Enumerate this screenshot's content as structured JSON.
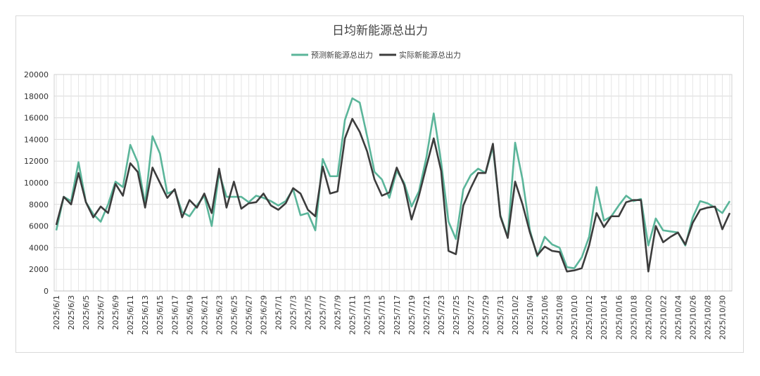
{
  "chart_data": {
    "type": "line",
    "title": "日均新能源总出力",
    "xlabel": "",
    "ylabel": "",
    "ylim": [
      0,
      20000
    ],
    "yticks": [
      0,
      2000,
      4000,
      6000,
      8000,
      10000,
      12000,
      14000,
      16000,
      18000,
      20000
    ],
    "grid": true,
    "legend_position": "top-center",
    "categories": [
      "2025/6/1",
      "2025/6/2",
      "2025/6/3",
      "2025/6/4",
      "2025/6/5",
      "2025/6/6",
      "2025/6/7",
      "2025/6/8",
      "2025/6/9",
      "2025/6/10",
      "2025/6/11",
      "2025/6/12",
      "2025/6/13",
      "2025/6/14",
      "2025/6/15",
      "2025/6/16",
      "2025/6/17",
      "2025/6/18",
      "2025/6/19",
      "2025/6/20",
      "2025/6/21",
      "2025/6/22",
      "2025/6/23",
      "2025/6/24",
      "2025/6/25",
      "2025/6/26",
      "2025/6/27",
      "2025/6/28",
      "2025/6/29",
      "2025/6/30",
      "2025/7/1",
      "2025/7/2",
      "2025/7/3",
      "2025/7/4",
      "2025/7/5",
      "2025/7/6",
      "2025/7/7",
      "2025/7/8",
      "2025/7/9",
      "2025/7/10",
      "2025/7/11",
      "2025/7/12",
      "2025/7/13",
      "2025/7/14",
      "2025/7/15",
      "2025/7/16",
      "2025/7/17",
      "2025/7/18",
      "2025/7/19",
      "2025/7/20",
      "2025/7/21",
      "2025/7/22",
      "2025/7/23",
      "2025/7/24",
      "2025/7/25",
      "2025/7/26",
      "2025/7/27",
      "2025/7/28",
      "2025/7/29",
      "2025/7/30",
      "2025/7/31",
      "2025/10/1",
      "2025/10/2",
      "2025/10/3",
      "2025/10/4",
      "2025/10/5",
      "2025/10/6",
      "2025/10/7",
      "2025/10/8",
      "2025/10/9",
      "2025/10/10",
      "2025/10/11",
      "2025/10/12",
      "2025/10/13",
      "2025/10/14",
      "2025/10/15",
      "2025/10/16",
      "2025/10/17",
      "2025/10/18",
      "2025/10/19",
      "2025/10/20",
      "2025/10/21",
      "2025/10/22",
      "2025/10/23",
      "2025/10/24",
      "2025/10/25",
      "2025/10/26",
      "2025/10/27",
      "2025/10/28",
      "2025/10/29",
      "2025/10/30",
      "2025/10/31"
    ],
    "x_tick_labels": [
      "2025/6/1",
      "2025/6/3",
      "2025/6/5",
      "2025/6/7",
      "2025/6/9",
      "2025/6/11",
      "2025/6/13",
      "2025/6/15",
      "2025/6/17",
      "2025/6/19",
      "2025/6/21",
      "2025/6/23",
      "2025/6/25",
      "2025/6/27",
      "2025/6/29",
      "2025/7/1",
      "2025/7/3",
      "2025/7/5",
      "2025/7/7",
      "2025/7/9",
      "2025/7/11",
      "2025/7/13",
      "2025/7/15",
      "2025/7/17",
      "2025/7/19",
      "2025/7/21",
      "2025/7/23",
      "2025/7/25",
      "2025/7/27",
      "2025/7/29",
      "2025/7/31",
      "2025/10/2",
      "2025/10/4",
      "2025/10/6",
      "2025/10/8",
      "2025/10/10",
      "2025/10/12",
      "2025/10/14",
      "2025/10/16",
      "2025/10/18",
      "2025/10/20",
      "2025/10/22",
      "2025/10/24",
      "2025/10/26",
      "2025/10/28",
      "2025/10/30"
    ],
    "series": [
      {
        "name": "预测新能源总出力",
        "color": "#5bb59a",
        "values": [
          5600,
          8700,
          8300,
          11900,
          8200,
          7100,
          6400,
          8000,
          10100,
          9600,
          13500,
          11900,
          8000,
          14300,
          12700,
          9000,
          9300,
          7300,
          6900,
          7900,
          8800,
          6000,
          10900,
          8700,
          8700,
          8700,
          8200,
          8800,
          8600,
          8300,
          7900,
          8300,
          9400,
          7000,
          7200,
          5600,
          12200,
          10600,
          10600,
          15800,
          17800,
          17400,
          14300,
          11000,
          10300,
          8600,
          11100,
          10000,
          7800,
          9200,
          12300,
          16400,
          11900,
          6400,
          4800,
          9400,
          10700,
          11300,
          10900,
          13300,
          7000,
          5000,
          13700,
          10300,
          5600,
          3200,
          5000,
          4300,
          4000,
          2200,
          2100,
          3100,
          5000,
          9600,
          6500,
          6900,
          7900,
          8800,
          8300,
          8500,
          4200,
          6700,
          5600,
          5500,
          5400,
          4200,
          6800,
          8300,
          8100,
          7700,
          7200,
          8300
        ]
      },
      {
        "name": "实际新能源总出力",
        "color": "#3c3c3c",
        "values": [
          6100,
          8700,
          8000,
          10900,
          8200,
          6800,
          7800,
          7200,
          9900,
          8800,
          11800,
          11000,
          7700,
          11400,
          10000,
          8600,
          9400,
          6800,
          8400,
          7700,
          9000,
          7200,
          11300,
          7700,
          10100,
          7600,
          8100,
          8200,
          9000,
          7900,
          7500,
          8100,
          9500,
          9000,
          7500,
          6900,
          11500,
          9000,
          9200,
          14100,
          15900,
          14700,
          12900,
          10300,
          8800,
          9100,
          11400,
          9800,
          6600,
          8800,
          11500,
          14100,
          11100,
          3700,
          3400,
          7900,
          9500,
          10900,
          10900,
          13600,
          6900,
          4900,
          10100,
          8000,
          5400,
          3300,
          4100,
          3700,
          3600,
          1800,
          1900,
          2100,
          4200,
          7200,
          5900,
          6900,
          6900,
          8200,
          8400,
          8400,
          1800,
          6000,
          4500,
          5000,
          5400,
          4300,
          6300,
          7500,
          7700,
          7800,
          5700,
          7200
        ]
      }
    ]
  }
}
